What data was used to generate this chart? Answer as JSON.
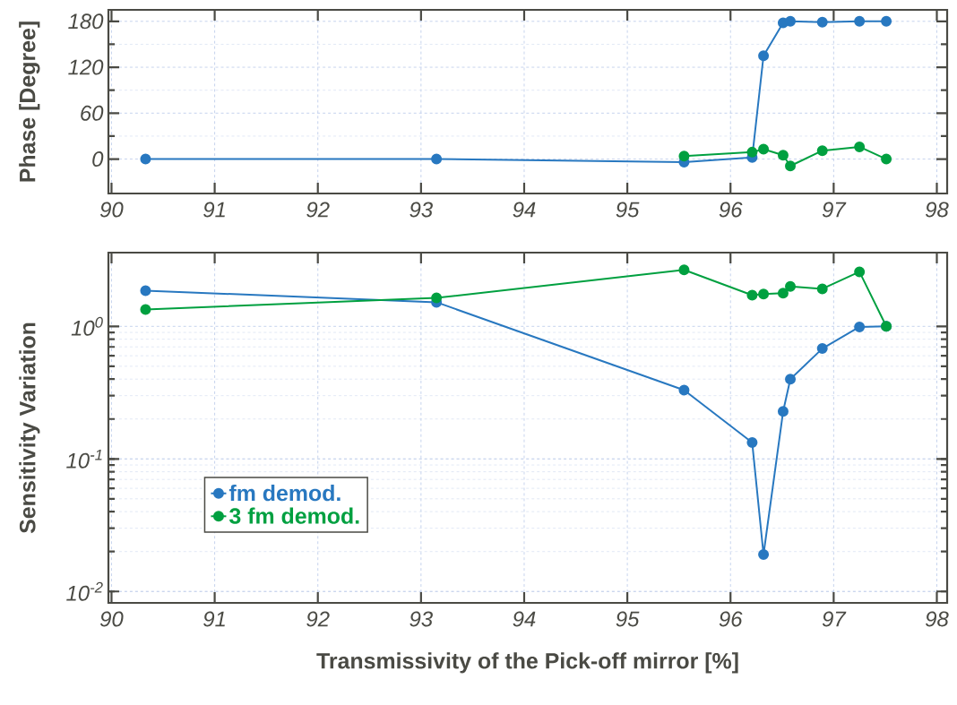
{
  "chart_data": [
    {
      "type": "line",
      "ylabel": "Phase [Degree]",
      "x": [
        90.33,
        93.15,
        95.55,
        96.21,
        96.32,
        96.51,
        96.58,
        96.89,
        97.25,
        97.51
      ],
      "xlim": [
        89.97,
        98.1
      ],
      "xticks": [
        90,
        91,
        92,
        93,
        94,
        95,
        96,
        97,
        98
      ],
      "ylim": [
        -45,
        195
      ],
      "yticks": [
        0,
        60,
        120,
        180
      ],
      "grid": true,
      "marker": "circle",
      "line_style": "solid",
      "series": [
        {
          "color": "#2878c0",
          "values": [
            0,
            0,
            -4,
            2,
            135,
            178,
            180,
            179,
            180,
            180
          ]
        },
        {
          "color": "#00a040",
          "values": [
            null,
            null,
            4,
            9,
            13,
            5,
            -9,
            11,
            16,
            0
          ]
        }
      ]
    },
    {
      "type": "line",
      "ylabel": "Sensitivity Variation",
      "xlabel": "Transmissivity of the Pick-off mirror [%]",
      "x": [
        90.33,
        93.15,
        95.55,
        96.21,
        96.32,
        96.51,
        96.58,
        96.89,
        97.25,
        97.51
      ],
      "xlim": [
        89.97,
        98.1
      ],
      "xticks": [
        90,
        91,
        92,
        93,
        94,
        95,
        96,
        97,
        98
      ],
      "ylim": [
        0.0082,
        3.6
      ],
      "yticks": [
        {
          "value": 0.01,
          "label": "10$^{-2}$"
        },
        {
          "value": 0.1,
          "label": "10$^{-1}$"
        },
        {
          "value": 1,
          "label": "10$^{0}$"
        }
      ],
      "log": "y",
      "grid": true,
      "marker": "circle",
      "line_style": "solid",
      "legend": "bottom left",
      "series": [
        {
          "name": "fm demod.",
          "color": "#2878c0",
          "values": [
            1.86,
            1.52,
            0.33,
            0.133,
            0.019,
            0.228,
            0.4,
            0.68,
            0.99,
            1.0
          ]
        },
        {
          "name": "3 fm demod.",
          "color": "#00a040",
          "values": [
            1.34,
            1.64,
            2.67,
            1.72,
            1.75,
            1.78,
            2.0,
            1.92,
            2.58,
            1.0
          ]
        }
      ]
    }
  ]
}
